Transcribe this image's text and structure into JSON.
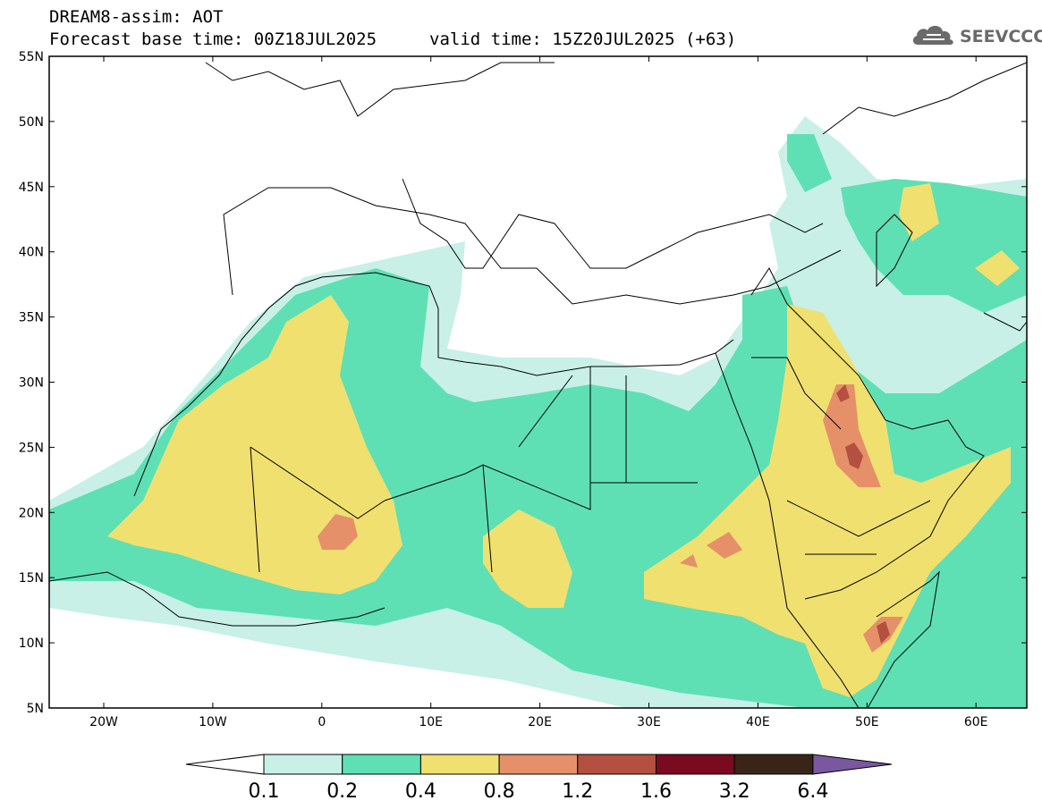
{
  "header": {
    "title": "DREAM8-assim: AOT",
    "base_time": "Forecast base time: 00Z18JUL2025",
    "valid_time": "valid time: 15Z20JUL2025 (+63)"
  },
  "logo": {
    "text": "SEEVCCC",
    "icon": "cloud-icon"
  },
  "axes": {
    "lat_labels": [
      "55N",
      "50N",
      "45N",
      "40N",
      "35N",
      "30N",
      "25N",
      "20N",
      "15N",
      "10N",
      "5N"
    ],
    "lon_labels": [
      "20W",
      "10W",
      "0",
      "10E",
      "20E",
      "30E",
      "40E",
      "50E",
      "60E"
    ]
  },
  "colorbar": {
    "labels": [
      "0.1",
      "0.2",
      "0.4",
      "0.8",
      "1.2",
      "1.6",
      "3.2",
      "6.4"
    ],
    "colors": [
      "#ffffff",
      "#c8f0e6",
      "#5ee0b4",
      "#f0e070",
      "#e6906a",
      "#b45040",
      "#7a0a20",
      "#3a2418",
      "#7a58a0"
    ]
  }
}
